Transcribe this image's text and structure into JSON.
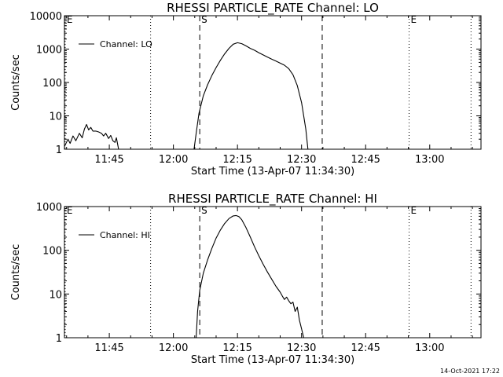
{
  "chart_data": [
    {
      "type": "line",
      "title": "RHESSI PARTICLE_RATE Channel: LO",
      "xlabel": "Start Time (13-Apr-07 11:34:30)",
      "ylabel": "Counts/sec",
      "yscale": "log",
      "xlim": [
        "11:34:30",
        "13:12:00"
      ],
      "ylim": [
        1,
        10000
      ],
      "x_ticks": [
        "11:45",
        "12:00",
        "12:15",
        "12:30",
        "12:45",
        "13:00"
      ],
      "y_ticks": [
        "1",
        "10",
        "100",
        "1000",
        "10000"
      ],
      "legend": {
        "position": "top-left",
        "entries": [
          "Channel: LO"
        ]
      },
      "markers": [
        {
          "label": "S",
          "time": "12:06:10",
          "style": "dashed"
        },
        {
          "label": "",
          "time": "12:34:50",
          "style": "dashed"
        },
        {
          "label": "",
          "time": "11:54:40",
          "style": "dotted"
        },
        {
          "label": "E",
          "time": "12:55:10",
          "style": "dotted"
        },
        {
          "label": "E",
          "time": "11:34:40",
          "style": "dotted"
        },
        {
          "label": "",
          "time": "13:09:40",
          "style": "dotted"
        }
      ],
      "series": [
        {
          "name": "Channel: LO",
          "segments": [
            [
              [
                "11:34:30",
                1.2
              ],
              [
                "11:35:20",
                2.0
              ],
              [
                "11:35:50",
                1.5
              ],
              [
                "11:36:30",
                2.5
              ],
              [
                "11:37:10",
                1.8
              ],
              [
                "11:38:00",
                3.0
              ],
              [
                "11:38:40",
                2.2
              ],
              [
                "11:39:10",
                4.0
              ],
              [
                "11:39:40",
                5.5
              ],
              [
                "11:40:10",
                3.8
              ],
              [
                "11:40:40",
                4.5
              ],
              [
                "11:41:10",
                3.5
              ],
              [
                "11:41:50",
                3.5
              ],
              [
                "11:42:30",
                3.3
              ],
              [
                "11:43:10",
                3.0
              ],
              [
                "11:43:40",
                2.5
              ],
              [
                "11:44:10",
                3.0
              ],
              [
                "11:44:50",
                2.1
              ],
              [
                "11:45:20",
                2.6
              ],
              [
                "11:45:50",
                1.8
              ],
              [
                "11:46:20",
                1.6
              ],
              [
                "11:46:40",
                2.2
              ],
              [
                "11:47:10",
                1.0
              ]
            ],
            [
              [
                "12:04:50",
                1.0
              ],
              [
                "12:05:20",
                3.0
              ],
              [
                "12:06:00",
                12
              ],
              [
                "12:07:00",
                40
              ],
              [
                "12:08:00",
                85
              ],
              [
                "12:09:00",
                160
              ],
              [
                "12:10:00",
                280
              ],
              [
                "12:11:00",
                460
              ],
              [
                "12:12:00",
                720
              ],
              [
                "12:13:00",
                1050
              ],
              [
                "12:14:00",
                1400
              ],
              [
                "12:15:00",
                1550
              ],
              [
                "12:16:00",
                1450
              ],
              [
                "12:17:00",
                1250
              ],
              [
                "12:18:00",
                1050
              ],
              [
                "12:19:00",
                920
              ],
              [
                "12:20:00",
                780
              ],
              [
                "12:21:00",
                670
              ],
              [
                "12:22:00",
                580
              ],
              [
                "12:23:00",
                500
              ],
              [
                "12:24:00",
                440
              ],
              [
                "12:25:00",
                380
              ],
              [
                "12:26:00",
                330
              ],
              [
                "12:27:00",
                260
              ],
              [
                "12:28:00",
                170
              ],
              [
                "12:29:00",
                80
              ],
              [
                "12:30:00",
                25
              ],
              [
                "12:30:30",
                10
              ],
              [
                "12:31:00",
                4
              ],
              [
                "12:31:30",
                1.0
              ]
            ]
          ]
        }
      ]
    },
    {
      "type": "line",
      "title": "RHESSI PARTICLE_RATE Channel: HI",
      "xlabel": "Start Time (13-Apr-07 11:34:30)",
      "ylabel": "Counts/sec",
      "yscale": "log",
      "xlim": [
        "11:34:30",
        "13:12:00"
      ],
      "ylim": [
        1,
        1000
      ],
      "x_ticks": [
        "11:45",
        "12:00",
        "12:15",
        "12:30",
        "12:45",
        "13:00"
      ],
      "y_ticks": [
        "1",
        "10",
        "100",
        "1000"
      ],
      "legend": {
        "position": "top-left",
        "entries": [
          "Channel: HI"
        ]
      },
      "markers": [
        {
          "label": "S",
          "time": "12:06:10",
          "style": "dashed"
        },
        {
          "label": "",
          "time": "12:34:50",
          "style": "dashed"
        },
        {
          "label": "",
          "time": "11:54:40",
          "style": "dotted"
        },
        {
          "label": "E",
          "time": "12:55:10",
          "style": "dotted"
        },
        {
          "label": "E",
          "time": "11:34:40",
          "style": "dotted"
        },
        {
          "label": "",
          "time": "13:09:40",
          "style": "dotted"
        }
      ],
      "series": [
        {
          "name": "Channel: HI",
          "segments": [
            [
              [
                "12:05:20",
                1.0
              ],
              [
                "12:05:40",
                4.0
              ],
              [
                "12:06:10",
                12
              ],
              [
                "12:07:00",
                30
              ],
              [
                "12:08:00",
                60
              ],
              [
                "12:09:00",
                110
              ],
              [
                "12:10:00",
                190
              ],
              [
                "12:11:00",
                290
              ],
              [
                "12:12:00",
                410
              ],
              [
                "12:13:00",
                530
              ],
              [
                "12:14:00",
                610
              ],
              [
                "12:14:40",
                625
              ],
              [
                "12:15:20",
                590
              ],
              [
                "12:16:00",
                500
              ],
              [
                "12:17:00",
                330
              ],
              [
                "12:18:00",
                200
              ],
              [
                "12:19:00",
                120
              ],
              [
                "12:20:00",
                75
              ],
              [
                "12:21:00",
                48
              ],
              [
                "12:22:00",
                32
              ],
              [
                "12:23:00",
                22
              ],
              [
                "12:24:00",
                15
              ],
              [
                "12:25:00",
                11
              ],
              [
                "12:25:30",
                9
              ],
              [
                "12:26:00",
                7.5
              ],
              [
                "12:26:30",
                8.5
              ],
              [
                "12:27:00",
                7
              ],
              [
                "12:27:30",
                6
              ],
              [
                "12:28:00",
                6.5
              ],
              [
                "12:28:30",
                4
              ],
              [
                "12:29:00",
                5
              ],
              [
                "12:29:30",
                2.5
              ],
              [
                "12:30:00",
                1.6
              ],
              [
                "12:30:30",
                1.0
              ]
            ]
          ]
        }
      ]
    }
  ],
  "footer": {
    "timestamp": "14-Oct-2021 17:22"
  },
  "colors": {
    "line": "#000000",
    "background": "#ffffff"
  }
}
